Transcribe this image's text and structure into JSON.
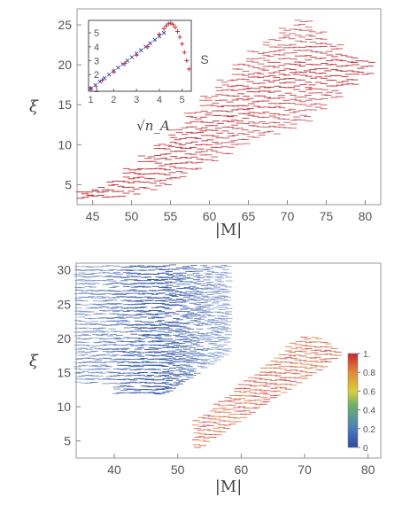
{
  "chart_data": [
    {
      "type": "scatter",
      "marker": "short horizontal dash",
      "xlabel": "|M|",
      "ylabel": "ξ",
      "xlim": [
        43,
        82
      ],
      "ylim": [
        2.5,
        27
      ],
      "xticks": [
        "45",
        "50",
        "55",
        "60",
        "65",
        "70",
        "75",
        "80"
      ],
      "yticks": [
        "5",
        "10",
        "15",
        "20",
        "25"
      ],
      "color": "#c0323a",
      "columns": [
        {
          "x": 44,
          "y_range": [
            3.5,
            4.0
          ]
        },
        {
          "x": 46,
          "y_range": [
            3.5,
            4.5
          ]
        },
        {
          "x": 48,
          "y_range": [
            3.5,
            5.5
          ]
        },
        {
          "x": 50,
          "y_range": [
            4.0,
            7.0
          ]
        },
        {
          "x": 52,
          "y_range": [
            4.5,
            8.5
          ]
        },
        {
          "x": 54,
          "y_range": [
            5.0,
            10.0
          ]
        },
        {
          "x": 56,
          "y_range": [
            6.0,
            12.0
          ]
        },
        {
          "x": 58,
          "y_range": [
            7.0,
            14.0
          ]
        },
        {
          "x": 60,
          "y_range": [
            8.0,
            16.0
          ]
        },
        {
          "x": 62,
          "y_range": [
            9.0,
            18.0
          ]
        },
        {
          "x": 64,
          "y_range": [
            10.0,
            20.0
          ]
        },
        {
          "x": 66,
          "y_range": [
            11.0,
            21.5
          ]
        },
        {
          "x": 68,
          "y_range": [
            11.5,
            23.0
          ]
        },
        {
          "x": 70,
          "y_range": [
            12.0,
            24.5
          ]
        },
        {
          "x": 72,
          "y_range": [
            13.0,
            25.5
          ]
        },
        {
          "x": 74,
          "y_range": [
            14.5,
            24.0
          ]
        },
        {
          "x": 76,
          "y_range": [
            16.0,
            22.5
          ]
        },
        {
          "x": 78,
          "y_range": [
            17.5,
            21.0
          ]
        },
        {
          "x": 80,
          "y_range": [
            19.0,
            20.5
          ]
        }
      ],
      "inset": {
        "type": "scatter",
        "xlabel": "√n_A",
        "ylabel": "S",
        "xlim": [
          0.9,
          5.4
        ],
        "ylim": [
          0.8,
          5.9
        ],
        "xticks": [
          "1",
          "2",
          "3",
          "4",
          "5"
        ],
        "yticks": [
          "1",
          "2",
          "3",
          "4",
          "5"
        ],
        "series": [
          {
            "marker": "x",
            "color": "#4a4ab0",
            "x": [
              1.0,
              1.2,
              1.4,
              1.6,
              1.8,
              2.0,
              2.2,
              2.4,
              2.6,
              2.8,
              3.0,
              3.2,
              3.4,
              3.6,
              3.8,
              4.0,
              4.2
            ],
            "y": [
              1.0,
              1.25,
              1.5,
              1.75,
              2.0,
              2.25,
              2.5,
              2.75,
              3.0,
              3.25,
              3.5,
              3.75,
              4.0,
              4.25,
              4.5,
              4.75,
              5.0
            ]
          },
          {
            "marker": "+",
            "color": "#c0323a",
            "x": [
              1.0,
              1.5,
              2.0,
              2.5,
              3.0,
              3.5,
              4.0,
              4.2,
              4.3,
              4.4,
              4.5,
              4.6,
              4.7,
              4.8,
              4.9,
              5.0,
              5.1,
              5.2,
              5.3
            ],
            "y": [
              1.0,
              1.6,
              2.2,
              2.8,
              3.4,
              4.0,
              4.9,
              5.3,
              5.5,
              5.65,
              5.7,
              5.6,
              5.4,
              5.1,
              4.7,
              4.2,
              3.6,
              3.0,
              2.4
            ]
          }
        ]
      }
    },
    {
      "type": "scatter",
      "marker": "short horizontal dash, colored by value",
      "xlabel": "|M|",
      "ylabel": "ξ",
      "xlim": [
        34,
        82
      ],
      "ylim": [
        2.5,
        31
      ],
      "xticks": [
        "40",
        "50",
        "60",
        "70",
        "80"
      ],
      "yticks": [
        "5",
        "10",
        "15",
        "20",
        "25",
        "30"
      ],
      "colorbar": {
        "min": 0,
        "max": 1,
        "ticks": [
          "0",
          "0.2",
          "0.4",
          "0.6",
          "0.8",
          "1."
        ],
        "colors": [
          "#2e4a9c",
          "#4a7bbd",
          "#6fb06a",
          "#d8cf3c",
          "#e08a3a",
          "#c4262e"
        ]
      },
      "regions": [
        {
          "label": "blue",
          "x_range": [
            34,
            58
          ],
          "y_range": [
            12,
            31
          ],
          "value": 0.05
        },
        {
          "label": "red",
          "x_range": [
            53,
            80
          ],
          "y_range": [
            4,
            24
          ],
          "value": 0.95
        }
      ]
    }
  ]
}
